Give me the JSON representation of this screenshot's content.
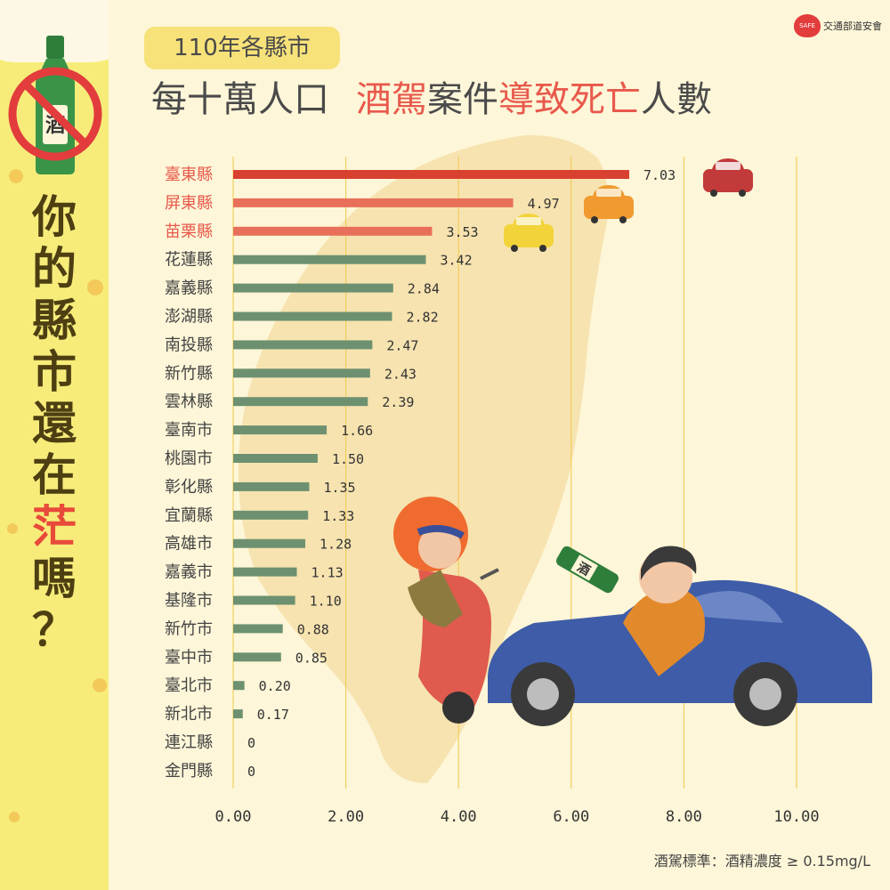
{
  "header": {
    "year_tag": "110年各縣市",
    "title_part1": "每十萬人口",
    "title_part2": "酒駕",
    "title_part3": "案件",
    "title_part4": "導致死亡",
    "title_part5": "人數"
  },
  "sidebar": {
    "question_chars": [
      "你",
      "的",
      "縣",
      "市",
      "還",
      "在",
      "茫",
      "嗎",
      "？"
    ],
    "highlight_char": "茫",
    "bottle_label": "酒"
  },
  "logo": {
    "badge_text": "SAFE",
    "org": "交通部道安會"
  },
  "note": "酒駕標準：酒精濃度 ≥ 0.15mg/L",
  "illustration": {
    "bottle_label": "酒"
  },
  "colors": {
    "top1": "#d8402f",
    "top3": "#e8705a",
    "default": "#6d9170",
    "label_top": "#e8594c",
    "label_default": "#444444",
    "gridline": "#efc94a",
    "map": "#f7e3b0"
  },
  "chart_data": {
    "type": "bar",
    "orientation": "horizontal",
    "categories": [
      "臺東縣",
      "屏東縣",
      "苗栗縣",
      "花蓮縣",
      "嘉義縣",
      "澎湖縣",
      "南投縣",
      "新竹縣",
      "雲林縣",
      "臺南市",
      "桃園市",
      "彰化縣",
      "宜蘭縣",
      "高雄市",
      "嘉義市",
      "基隆市",
      "新竹市",
      "臺中市",
      "臺北市",
      "新北市",
      "連江縣",
      "金門縣"
    ],
    "values": [
      7.03,
      4.97,
      3.53,
      3.42,
      2.84,
      2.82,
      2.47,
      2.43,
      2.39,
      1.66,
      1.5,
      1.35,
      1.33,
      1.28,
      1.13,
      1.1,
      0.88,
      0.85,
      0.2,
      0.17,
      0,
      0
    ],
    "value_labels": [
      "7.03",
      "4.97",
      "3.53",
      "3.42",
      "2.84",
      "2.82",
      "2.47",
      "2.43",
      "2.39",
      "1.66",
      "1.50",
      "1.35",
      "1.33",
      "1.28",
      "1.13",
      "1.10",
      "0.88",
      "0.85",
      "0.20",
      "0.17",
      "0",
      "0"
    ],
    "highlighted_top": 3,
    "xlim": [
      0,
      10
    ],
    "x_ticks": [
      "0.00",
      "2.00",
      "4.00",
      "6.00",
      "8.00",
      "10.00"
    ],
    "grid": true
  }
}
